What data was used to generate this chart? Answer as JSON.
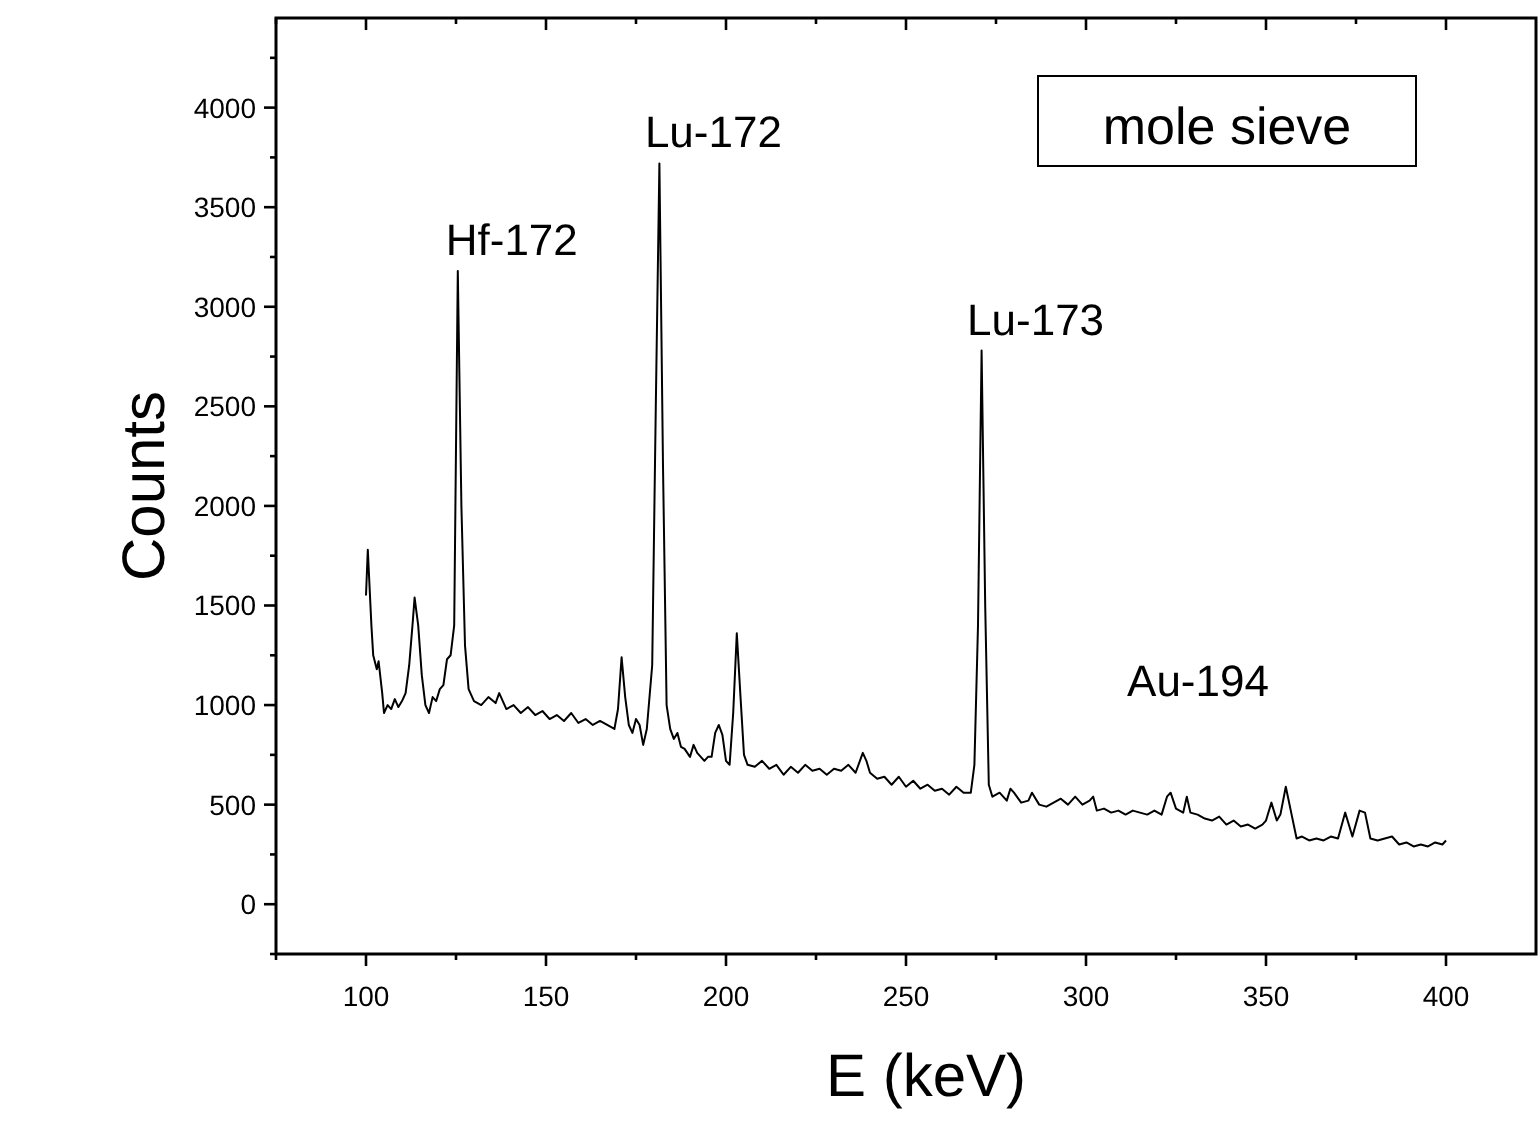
{
  "chart_data": {
    "type": "line",
    "title": "mole sieve",
    "xlabel": "E (keV)",
    "ylabel": "Counts",
    "xlim": [
      75,
      425
    ],
    "ylim": [
      -250,
      4450
    ],
    "xticks": [
      {
        "value": 75,
        "label": null
      },
      100,
      {
        "value": 125,
        "label": null
      },
      150,
      {
        "value": 175,
        "label": null
      },
      200,
      {
        "value": 225,
        "label": null
      },
      250,
      {
        "value": 275,
        "label": null
      },
      300,
      {
        "value": 325,
        "label": null
      },
      350,
      {
        "value": 375,
        "label": null
      },
      400
    ],
    "yticks": [
      {
        "value": -250,
        "label": null
      },
      0,
      {
        "value": 250,
        "label": null
      },
      500,
      {
        "value": 750,
        "label": null
      },
      1000,
      {
        "value": 1250,
        "label": null
      },
      1500,
      {
        "value": 1750,
        "label": null
      },
      2000,
      {
        "value": 2250,
        "label": null
      },
      2500,
      {
        "value": 2750,
        "label": null
      },
      3000,
      {
        "value": 3250,
        "label": null
      },
      3500,
      {
        "value": 3750,
        "label": null
      },
      4000,
      {
        "value": 4250,
        "label": null
      }
    ],
    "grid": false,
    "marker": "none",
    "line_style": "solid",
    "annotations": [
      {
        "text": "Hf-172",
        "x": 125.5,
        "y": 3180
      },
      {
        "text": "Lu-172",
        "x": 181.5,
        "y": 3720
      },
      {
        "text": "Lu-173",
        "x": 271,
        "y": 2780
      },
      "Au-194"
    ],
    "series": [
      {
        "color": "#000000",
        "x": [
          100,
          100.5,
          101.5,
          102,
          103,
          103.5,
          104.5,
          105,
          106,
          107,
          108,
          109,
          110,
          111,
          112,
          113,
          113.5,
          114.5,
          115.5,
          116.5,
          117.5,
          118.5,
          119.5,
          120.5,
          121.5,
          122.5,
          123.5,
          124.5,
          125.5,
          126.5,
          127.5,
          128.5,
          130,
          132,
          134,
          136,
          137,
          139,
          141,
          143,
          145,
          147,
          149,
          151,
          153,
          155,
          157,
          159,
          161,
          163,
          165,
          167,
          169,
          170,
          171,
          172,
          173,
          174,
          175,
          176,
          177,
          178,
          179.5,
          180.5,
          181.5,
          182.5,
          183.5,
          184.5,
          185.5,
          186.5,
          187.5,
          188.5,
          190,
          191,
          192,
          194,
          195,
          196,
          197,
          198,
          199,
          200,
          201,
          202,
          203,
          204,
          205,
          206,
          208,
          210,
          212,
          214,
          216,
          218,
          220,
          222,
          224,
          226,
          228,
          230,
          232,
          234,
          236,
          238,
          239,
          240,
          242,
          244,
          246,
          248,
          250,
          252,
          254,
          256,
          258,
          260,
          262,
          264,
          266,
          268,
          269,
          270,
          271,
          272,
          273,
          274,
          276,
          278,
          279,
          280,
          282,
          284,
          285,
          287,
          289,
          291,
          293,
          295,
          297,
          299,
          301,
          302,
          303,
          305,
          307,
          309,
          311,
          313,
          315,
          317,
          319,
          321,
          322.5,
          323.5,
          325,
          327,
          328,
          329,
          331,
          333,
          335,
          337,
          339,
          341,
          343,
          345,
          347,
          349,
          350,
          351.5,
          353,
          354,
          355.5,
          357,
          358.5,
          360,
          362,
          364,
          366,
          368,
          370,
          372,
          373,
          374,
          376,
          377.5,
          379,
          381,
          383,
          385,
          387,
          389,
          391,
          393,
          395,
          397,
          399,
          400
        ],
        "values": [
          1550,
          1780,
          1400,
          1250,
          1180,
          1220,
          1060,
          960,
          1000,
          980,
          1030,
          990,
          1020,
          1060,
          1200,
          1420,
          1540,
          1400,
          1150,
          1000,
          960,
          1040,
          1020,
          1080,
          1100,
          1230,
          1250,
          1400,
          3180,
          2000,
          1300,
          1080,
          1020,
          1000,
          1040,
          1010,
          1060,
          980,
          1000,
          960,
          990,
          950,
          970,
          930,
          950,
          920,
          960,
          910,
          930,
          900,
          920,
          900,
          880,
          980,
          1240,
          1040,
          900,
          860,
          930,
          900,
          800,
          880,
          1200,
          2500,
          3720,
          2200,
          1000,
          880,
          830,
          860,
          790,
          780,
          740,
          800,
          760,
          720,
          740,
          740,
          860,
          900,
          850,
          720,
          700,
          960,
          1360,
          1050,
          750,
          700,
          690,
          720,
          680,
          700,
          650,
          690,
          660,
          700,
          670,
          680,
          650,
          680,
          670,
          700,
          660,
          760,
          720,
          660,
          630,
          640,
          600,
          640,
          590,
          620,
          580,
          600,
          570,
          580,
          550,
          590,
          560,
          560,
          700,
          1400,
          2780,
          1500,
          600,
          540,
          560,
          520,
          580,
          560,
          510,
          520,
          560,
          500,
          490,
          510,
          530,
          500,
          540,
          500,
          520,
          540,
          470,
          480,
          460,
          470,
          450,
          470,
          460,
          450,
          470,
          450,
          540,
          560,
          480,
          460,
          540,
          460,
          450,
          430,
          420,
          440,
          400,
          420,
          390,
          400,
          380,
          400,
          420,
          510,
          420,
          450,
          590,
          460,
          330,
          340,
          320,
          330,
          320,
          340,
          330,
          460,
          400,
          340,
          470,
          460,
          330,
          320,
          330,
          340,
          300,
          310,
          290,
          300,
          290,
          310,
          300,
          320
        ]
      }
    ]
  }
}
